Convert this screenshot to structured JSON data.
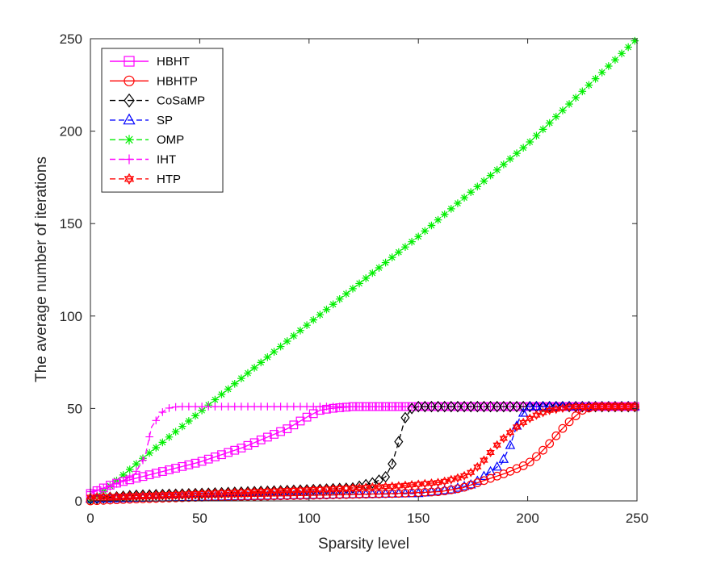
{
  "chart_data": {
    "type": "line",
    "xlabel": "Sparsity  level",
    "ylabel": "The average number of iterations",
    "xlim": [
      0,
      250
    ],
    "ylim": [
      0,
      250
    ],
    "xticks": [
      "0",
      "50",
      "100",
      "150",
      "200",
      "250"
    ],
    "yticks": [
      "0",
      "50",
      "100",
      "150",
      "200",
      "250"
    ],
    "legend_position": "top-left",
    "series": [
      {
        "name": "HBHT",
        "color": "#ff00ff",
        "line": "solid",
        "marker": "square",
        "points": [
          [
            0,
            4
          ],
          [
            10,
            9
          ],
          [
            20,
            12
          ],
          [
            30,
            15
          ],
          [
            40,
            18
          ],
          [
            50,
            21
          ],
          [
            60,
            25
          ],
          [
            70,
            29
          ],
          [
            80,
            34
          ],
          [
            90,
            39
          ],
          [
            100,
            46
          ],
          [
            105,
            49
          ],
          [
            110,
            50
          ],
          [
            120,
            51
          ],
          [
            130,
            51
          ],
          [
            140,
            51
          ],
          [
            150,
            51
          ],
          [
            200,
            51
          ],
          [
            250,
            51
          ]
        ]
      },
      {
        "name": "HBHTP",
        "color": "#ff0000",
        "line": "solid",
        "marker": "circle",
        "points": [
          [
            0,
            0
          ],
          [
            20,
            1
          ],
          [
            50,
            2
          ],
          [
            100,
            3
          ],
          [
            140,
            4
          ],
          [
            160,
            5
          ],
          [
            170,
            7
          ],
          [
            180,
            11
          ],
          [
            190,
            15
          ],
          [
            200,
            20
          ],
          [
            205,
            25
          ],
          [
            210,
            31
          ],
          [
            215,
            38
          ],
          [
            220,
            44
          ],
          [
            225,
            49
          ],
          [
            230,
            51
          ],
          [
            240,
            51
          ],
          [
            250,
            51
          ]
        ]
      },
      {
        "name": "CoSaMP",
        "color": "#000000",
        "line": "dashed",
        "marker": "diamond",
        "points": [
          [
            0,
            1
          ],
          [
            20,
            3
          ],
          [
            50,
            4
          ],
          [
            100,
            6
          ],
          [
            120,
            7
          ],
          [
            130,
            10
          ],
          [
            135,
            13
          ],
          [
            138,
            20
          ],
          [
            141,
            32
          ],
          [
            144,
            45
          ],
          [
            147,
            50
          ],
          [
            150,
            51
          ],
          [
            200,
            51
          ],
          [
            250,
            51
          ]
        ]
      },
      {
        "name": "SP",
        "color": "#0000ff",
        "line": "dashed",
        "marker": "triangle",
        "points": [
          [
            0,
            1
          ],
          [
            50,
            2
          ],
          [
            100,
            3
          ],
          [
            150,
            4
          ],
          [
            165,
            6
          ],
          [
            175,
            9
          ],
          [
            182,
            15
          ],
          [
            188,
            20
          ],
          [
            192,
            30
          ],
          [
            196,
            44
          ],
          [
            200,
            51
          ],
          [
            210,
            51
          ],
          [
            250,
            51
          ]
        ]
      },
      {
        "name": "OMP",
        "color": "#00ee00",
        "line": "dashed",
        "marker": "asterisk",
        "points": [
          [
            0,
            0
          ],
          [
            10,
            9
          ],
          [
            25,
            24
          ],
          [
            50,
            48
          ],
          [
            100,
            96
          ],
          [
            150,
            143
          ],
          [
            200,
            193
          ],
          [
            250,
            250
          ]
        ]
      },
      {
        "name": "IHT",
        "color": "#ff00ff",
        "line": "dashed",
        "marker": "plus",
        "points": [
          [
            0,
            5
          ],
          [
            10,
            8
          ],
          [
            20,
            14
          ],
          [
            25,
            24
          ],
          [
            28,
            40
          ],
          [
            32,
            47
          ],
          [
            35,
            50
          ],
          [
            40,
            51
          ],
          [
            250,
            51
          ]
        ]
      },
      {
        "name": "HTP",
        "color": "#ff0000",
        "line": "dashed",
        "marker": "hexagram",
        "points": [
          [
            0,
            2
          ],
          [
            50,
            4
          ],
          [
            100,
            6
          ],
          [
            140,
            8
          ],
          [
            160,
            10
          ],
          [
            170,
            13
          ],
          [
            175,
            16
          ],
          [
            180,
            22
          ],
          [
            185,
            29
          ],
          [
            190,
            35
          ],
          [
            195,
            40
          ],
          [
            200,
            44
          ],
          [
            205,
            47
          ],
          [
            210,
            49
          ],
          [
            215,
            50
          ],
          [
            220,
            51
          ],
          [
            250,
            51
          ]
        ]
      }
    ]
  }
}
